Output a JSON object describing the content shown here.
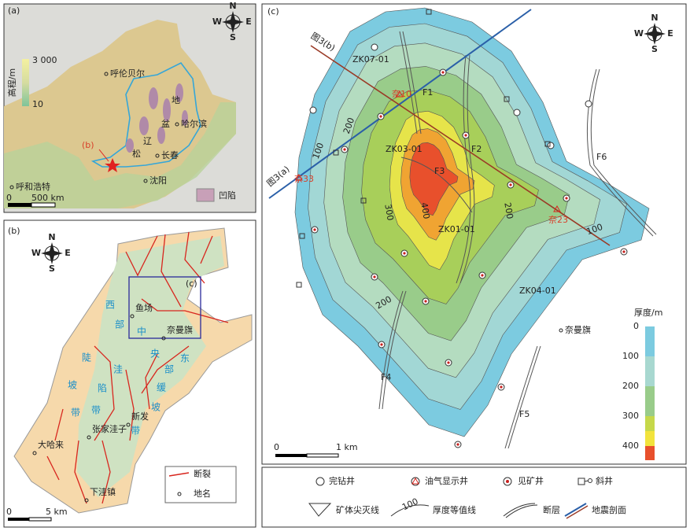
{
  "panel_a": {
    "label": "(a)",
    "compass": [
      "N",
      "E",
      "S",
      "W"
    ],
    "elevation_title": "高程/m",
    "elevation_max": "3 000",
    "elevation_min": "10",
    "places": [
      "呼伦贝尔",
      "哈尔滨",
      "长春",
      "沈阳",
      "呼和浩特"
    ],
    "basin_chars": [
      "松",
      "辽",
      "盆",
      "地"
    ],
    "marker": "(b)",
    "scale": [
      "0",
      "500 km"
    ],
    "legend": "凹陷"
  },
  "panel_b": {
    "label": "(b)",
    "compass": [
      "N",
      "E",
      "S",
      "W"
    ],
    "box_label": "(c)",
    "places": [
      "鱼场",
      "奈曼旗",
      "新发",
      "张家洼子",
      "大哈来",
      "下洼镇"
    ],
    "zones": [
      [
        "西",
        "部",
        "陡",
        "坡",
        "带"
      ],
      [
        "中",
        "央",
        "洼",
        "陷",
        "带"
      ],
      [
        "东",
        "部",
        "缓",
        "坡",
        "带"
      ]
    ],
    "legend": [
      "断裂",
      "地名"
    ],
    "scale": [
      "0",
      "5 km"
    ]
  },
  "panel_c": {
    "label": "(c)",
    "compass": [
      "N",
      "E",
      "S",
      "W"
    ],
    "wells": [
      "ZK07-01",
      "ZK03-01",
      "ZK01-01",
      "ZK04-01"
    ],
    "named_wells": [
      "奈10",
      "奈33",
      "奈23"
    ],
    "faults": [
      "F1",
      "F2",
      "F3",
      "F4",
      "F5",
      "F6"
    ],
    "sections": [
      "图3(a)",
      "图3(b)"
    ],
    "contour_labels": [
      100,
      200,
      300,
      400,
      200,
      100,
      200
    ],
    "place": "奈曼旗",
    "thickness_title": "厚度/m",
    "thickness_ticks": [
      0,
      100,
      200,
      300,
      400
    ],
    "scale": [
      "0",
      "1 km"
    ],
    "legend": [
      "完钻井",
      "油气显示井",
      "见矿井",
      "斜井",
      "矿体尖灭线",
      "厚度等值线",
      "断层",
      "地震剖面"
    ],
    "legend_contour": "100"
  }
}
